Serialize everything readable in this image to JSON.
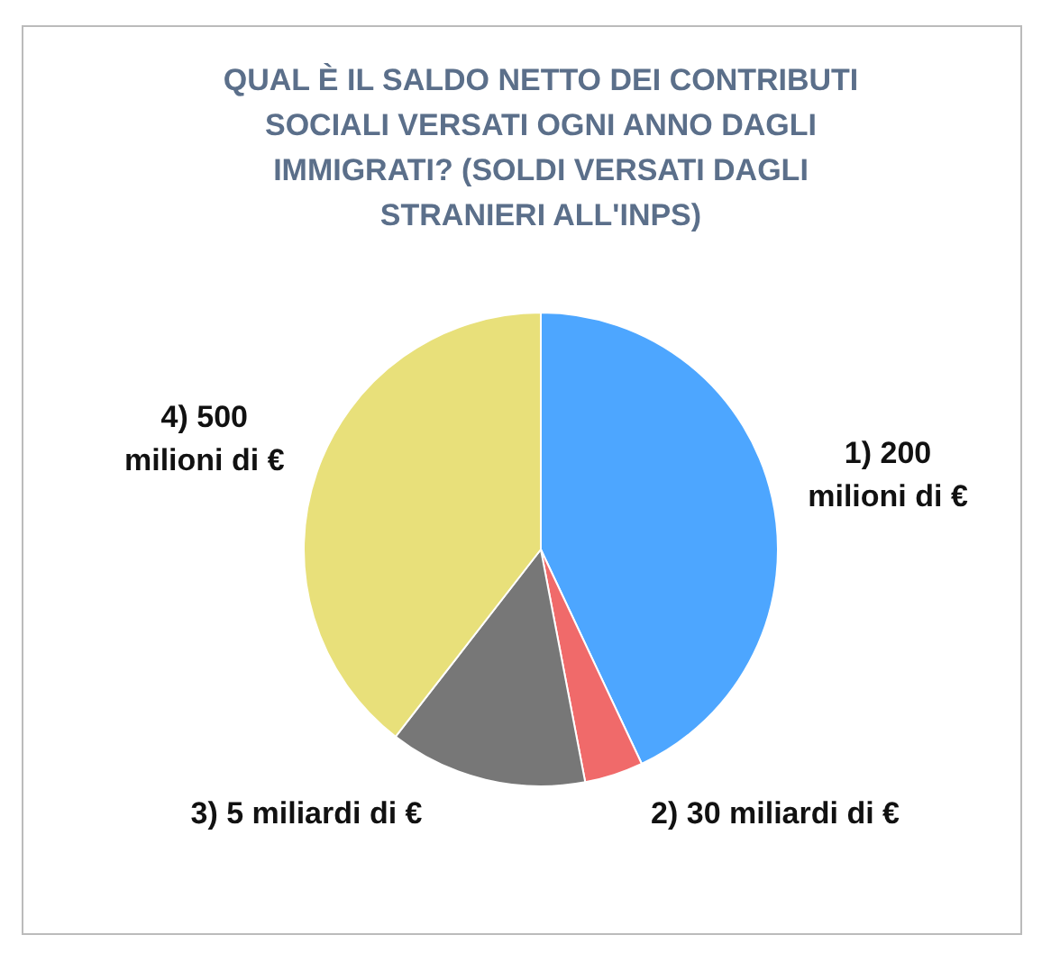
{
  "chart_data": {
    "type": "pie",
    "title": "QUAL È IL SALDO NETTO DEI CONTRIBUTI SOCIALI VERSATI OGNI ANNO DAGLI IMMIGRATI? (SOLDI VERSATI DAGLI STRANIERI ALL'INPS)",
    "categories": [
      "1) 200 milioni di €",
      "2) 30 miliardi di €",
      "3) 5 miliardi di €",
      "4) 500 milioni di €"
    ],
    "values": [
      43,
      4,
      13.5,
      39.5
    ],
    "colors": [
      "#4da6ff",
      "#f06a6a",
      "#777777",
      "#e8e07a"
    ],
    "legend": false
  }
}
